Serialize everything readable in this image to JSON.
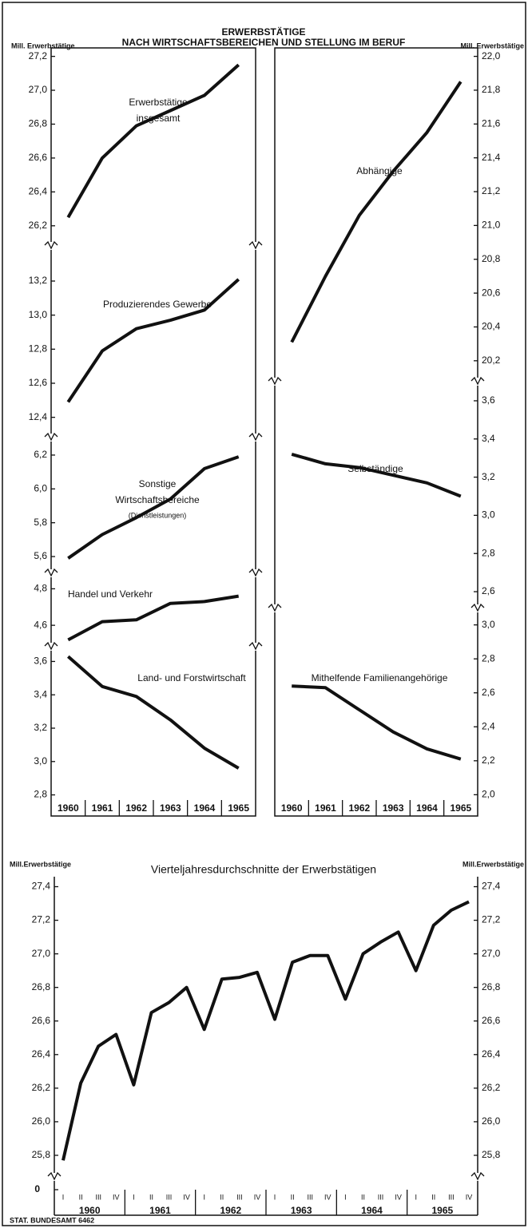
{
  "title": [
    "ERWERBSTÄTIGE",
    "NACH WIRTSCHAFTSBEREICHEN UND STELLUNG IM BERUF"
  ],
  "source": "STAT. BUNDESAMT 6462",
  "chart_data": [
    {
      "type": "line",
      "y_label": "Mill. Erwerbstätige",
      "color": "#111111",
      "categories": [
        "1960",
        "1961",
        "1962",
        "1963",
        "1964",
        "1965"
      ],
      "panels": [
        {
          "label": [
            "Erwerbstätige",
            "insgesamt"
          ],
          "values": [
            26.25,
            26.6,
            26.79,
            26.88,
            26.97,
            27.15
          ],
          "ylim": [
            26.1,
            27.25
          ],
          "yticks": [
            {
              "value": 26.2,
              "label": "26,2"
            },
            {
              "value": 26.4,
              "label": "26,4"
            },
            {
              "value": 26.6,
              "label": "26,6"
            },
            {
              "value": 26.8,
              "label": "26,8"
            },
            {
              "value": 27.0,
              "label": "27,0"
            },
            {
              "value": 27.2,
              "label": "27,2"
            }
          ]
        },
        {
          "label": [
            "Produzierendes Gewerbe"
          ],
          "values": [
            12.49,
            12.79,
            12.92,
            12.97,
            13.03,
            13.21
          ],
          "ylim": [
            12.3,
            13.35
          ],
          "yticks": [
            {
              "value": 12.4,
              "label": "12,4"
            },
            {
              "value": 12.6,
              "label": "12,6"
            },
            {
              "value": 12.8,
              "label": "12,8"
            },
            {
              "value": 13.0,
              "label": "13,0"
            },
            {
              "value": 13.2,
              "label": "13,2"
            }
          ]
        },
        {
          "label": [
            "Sonstige",
            "Wirtschaftsbereiche",
            "(Dienstleistungen)"
          ],
          "values": [
            5.59,
            5.73,
            5.83,
            5.94,
            6.12,
            6.19
          ],
          "ylim": [
            5.52,
            6.28
          ],
          "yticks": [
            {
              "value": 5.6,
              "label": "5,6"
            },
            {
              "value": 5.8,
              "label": "5,8"
            },
            {
              "value": 6.0,
              "label": "6,0"
            },
            {
              "value": 6.2,
              "label": "6,2"
            }
          ]
        },
        {
          "label": [
            "Handel und Verkehr"
          ],
          "values": [
            4.52,
            4.62,
            4.63,
            4.72,
            4.73,
            4.76
          ],
          "ylim": [
            4.5,
            4.85
          ],
          "yticks": [
            {
              "value": 4.6,
              "label": "4,6"
            },
            {
              "value": 4.8,
              "label": "4,8"
            }
          ]
        },
        {
          "label": [
            "Land- und Forstwirtschaft"
          ],
          "values": [
            3.63,
            3.45,
            3.39,
            3.25,
            3.08,
            2.96
          ],
          "ylim": [
            2.75,
            3.65
          ],
          "yticks": [
            {
              "value": 2.8,
              "label": "2,8"
            },
            {
              "value": 3.0,
              "label": "3,0"
            },
            {
              "value": 3.2,
              "label": "3,2"
            },
            {
              "value": 3.4,
              "label": "3,4"
            },
            {
              "value": 3.6,
              "label": "3,6"
            }
          ]
        }
      ]
    },
    {
      "type": "line",
      "y_label": "Mill. Erwerbstätige",
      "axis_side": "right",
      "color": "#111111",
      "categories": [
        "1960",
        "1961",
        "1962",
        "1963",
        "1964",
        "1965"
      ],
      "panels": [
        {
          "label": [
            "Abhängige"
          ],
          "values": [
            20.31,
            20.7,
            21.06,
            21.32,
            21.55,
            21.85
          ],
          "ylim": [
            20.1,
            22.05
          ],
          "yticks": [
            {
              "value": 20.2,
              "label": "20,2"
            },
            {
              "value": 20.4,
              "label": "20,4"
            },
            {
              "value": 20.6,
              "label": "20,6"
            },
            {
              "value": 20.8,
              "label": "20,8"
            },
            {
              "value": 21.0,
              "label": "21,0"
            },
            {
              "value": 21.2,
              "label": "21,2"
            },
            {
              "value": 21.4,
              "label": "21,4"
            },
            {
              "value": 21.6,
              "label": "21,6"
            },
            {
              "value": 21.8,
              "label": "21,8"
            },
            {
              "value": 22.0,
              "label": "22,0"
            }
          ]
        },
        {
          "label": [
            "Selbständige"
          ],
          "values": [
            3.32,
            3.27,
            3.25,
            3.21,
            3.17,
            3.1
          ],
          "ylim": [
            2.55,
            3.65
          ],
          "yticks": [
            {
              "value": 2.6,
              "label": "2,6"
            },
            {
              "value": 2.8,
              "label": "2,8"
            },
            {
              "value": 3.0,
              "label": "3,0"
            },
            {
              "value": 3.2,
              "label": "3,2"
            },
            {
              "value": 3.4,
              "label": "3,4"
            },
            {
              "value": 3.6,
              "label": "3,6"
            }
          ]
        },
        {
          "label": [
            "Mithelfende Familienangehörige"
          ],
          "values": [
            2.64,
            2.63,
            2.5,
            2.37,
            2.27,
            2.21
          ],
          "ylim": [
            1.95,
            3.05
          ],
          "yticks": [
            {
              "value": 2.0,
              "label": "2,0"
            },
            {
              "value": 2.2,
              "label": "2,2"
            },
            {
              "value": 2.4,
              "label": "2,4"
            },
            {
              "value": 2.6,
              "label": "2,6"
            },
            {
              "value": 2.8,
              "label": "2,8"
            },
            {
              "value": 3.0,
              "label": "3,0"
            }
          ]
        }
      ]
    },
    {
      "type": "line",
      "title": "Vierteljahresdurchschnitte der Erwerbstätigen",
      "y_label": "Mill.Erwerbstätige",
      "y2_label": "Mill.Erwerbstätige",
      "color": "#111111",
      "categories": [
        "I",
        "II",
        "III",
        "IV",
        "I",
        "II",
        "III",
        "IV",
        "I",
        "II",
        "III",
        "IV",
        "I",
        "II",
        "III",
        "IV",
        "I",
        "II",
        "III",
        "IV",
        "I",
        "II",
        "III",
        "IV"
      ],
      "years": [
        "1960",
        "1961",
        "1962",
        "1963",
        "1964",
        "1965"
      ],
      "values": [
        25.77,
        26.23,
        26.45,
        26.52,
        26.22,
        26.65,
        26.71,
        26.8,
        26.55,
        26.85,
        26.86,
        26.89,
        26.61,
        26.95,
        26.99,
        26.99,
        26.73,
        27.0,
        27.07,
        27.13,
        26.9,
        27.17,
        27.26,
        27.31
      ],
      "ylim": [
        25.7,
        27.45
      ],
      "yticks": [
        {
          "value": 25.8,
          "label": "25,8"
        },
        {
          "value": 26.0,
          "label": "26,0"
        },
        {
          "value": 26.2,
          "label": "26,2"
        },
        {
          "value": 26.4,
          "label": "26,4"
        },
        {
          "value": 26.6,
          "label": "26,6"
        },
        {
          "value": 26.8,
          "label": "26,8"
        },
        {
          "value": 27.0,
          "label": "27,0"
        },
        {
          "value": 27.2,
          "label": "27,2"
        },
        {
          "value": 27.4,
          "label": "27,4"
        }
      ],
      "y2lim": [
        25.7,
        27.45
      ],
      "y2ticks": [
        {
          "value": 25.8,
          "label": "25,8"
        },
        {
          "value": 26.0,
          "label": "26,0"
        },
        {
          "value": 26.2,
          "label": "26,2"
        },
        {
          "value": 26.4,
          "label": "26,4"
        },
        {
          "value": 26.6,
          "label": "26,6"
        },
        {
          "value": 26.8,
          "label": "26,8"
        },
        {
          "value": 27.0,
          "label": "27,0"
        },
        {
          "value": 27.2,
          "label": "27,2"
        },
        {
          "value": 27.4,
          "label": "27,4"
        }
      ],
      "axis_break_tick": 0
    }
  ]
}
